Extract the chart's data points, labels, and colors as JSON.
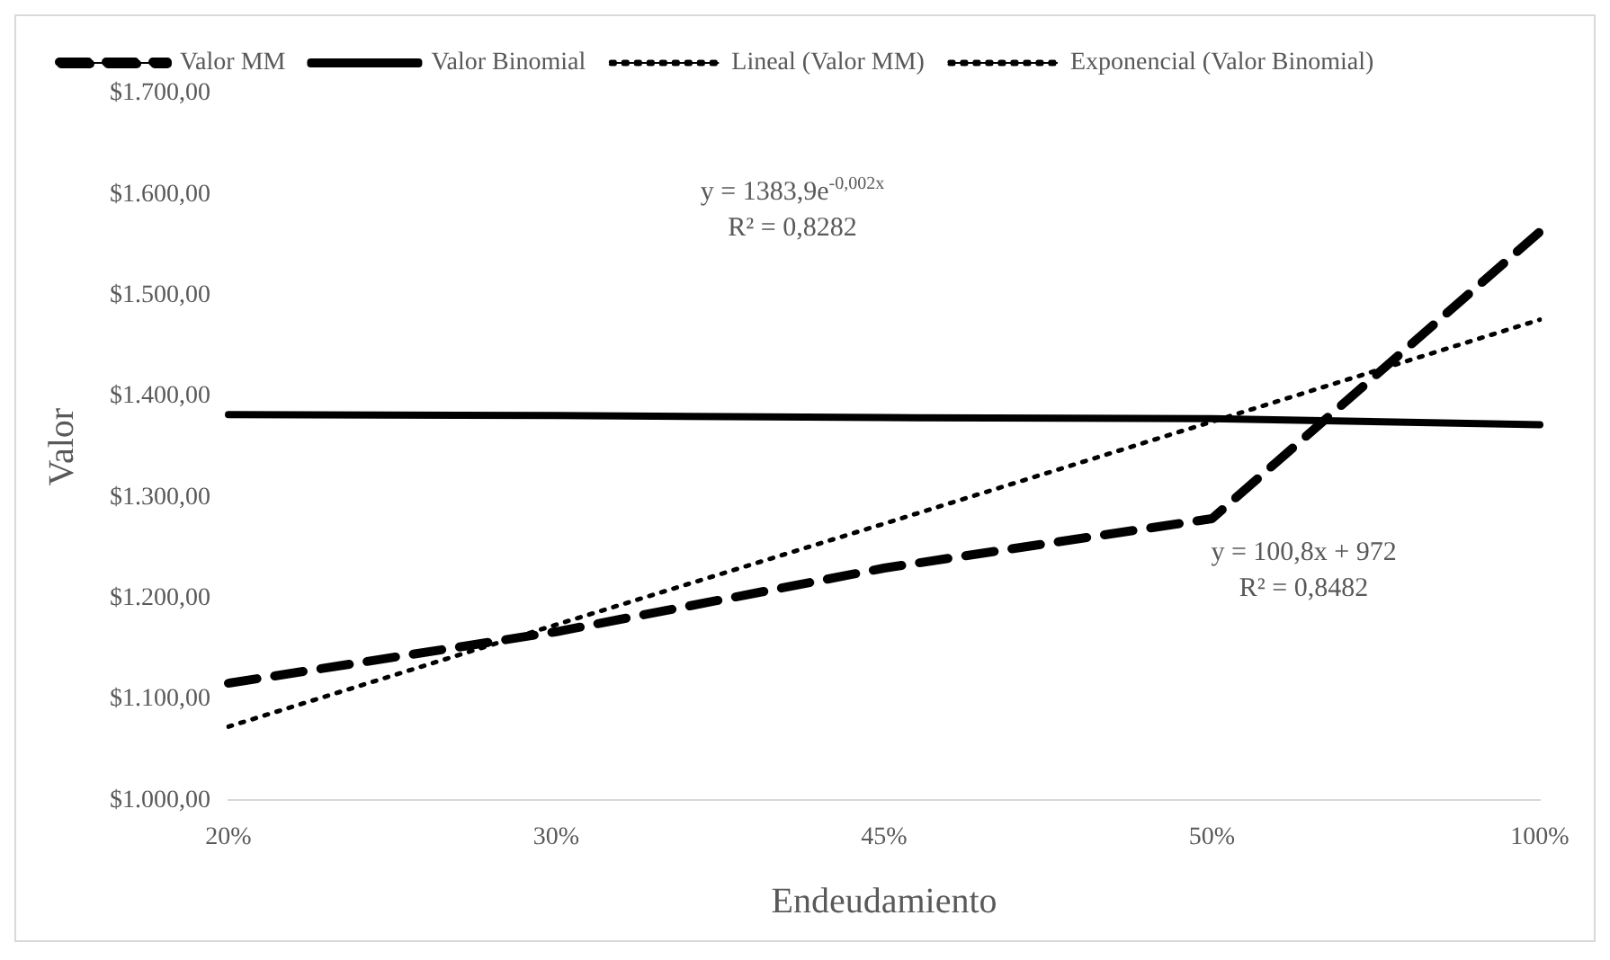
{
  "chart_data": {
    "type": "line",
    "xlabel": "Endeudamiento",
    "ylabel": "Valor",
    "categories": [
      "20%",
      "30%",
      "45%",
      "50%",
      "100%"
    ],
    "series": [
      {
        "name": "Valor MM",
        "color": "#000000",
        "line_style": "dashed",
        "values": [
          1116,
          1167,
          1230,
          1279,
          1563
        ]
      },
      {
        "name": "Valor Binomial",
        "color": "#000000",
        "line_style": "solid",
        "values": [
          1382,
          1381,
          1379,
          1378,
          1372
        ]
      },
      {
        "name": "Lineal (Valor MM)",
        "color": "#000000",
        "line_style": "dotted",
        "values": [
          1073,
          1174,
          1274,
          1375,
          1476
        ]
      },
      {
        "name": "Exponencial (Valor Binomial)",
        "color": "#000000",
        "line_style": "dotted",
        "values": [
          null,
          null,
          null,
          null,
          null
        ]
      }
    ],
    "ylim": [
      1000,
      1700
    ],
    "yticks": [
      {
        "value": 1000,
        "label": "$1.000,00"
      },
      {
        "value": 1100,
        "label": "$1.100,00"
      },
      {
        "value": 1200,
        "label": "$1.200,00"
      },
      {
        "value": 1300,
        "label": "$1.300,00"
      },
      {
        "value": 1400,
        "label": "$1.400,00"
      },
      {
        "value": 1500,
        "label": "$1.500,00"
      },
      {
        "value": 1600,
        "label": "$1.600,00"
      },
      {
        "value": 1700,
        "label": "$1.700,00"
      }
    ],
    "annotations": [
      "y = 1383,9e$^{-0,002x}$\nR² = 0,8282",
      "y = 100,8x + 972\nR² = 0,8482"
    ],
    "grid": false,
    "legend": "top left",
    "marker": "none"
  }
}
